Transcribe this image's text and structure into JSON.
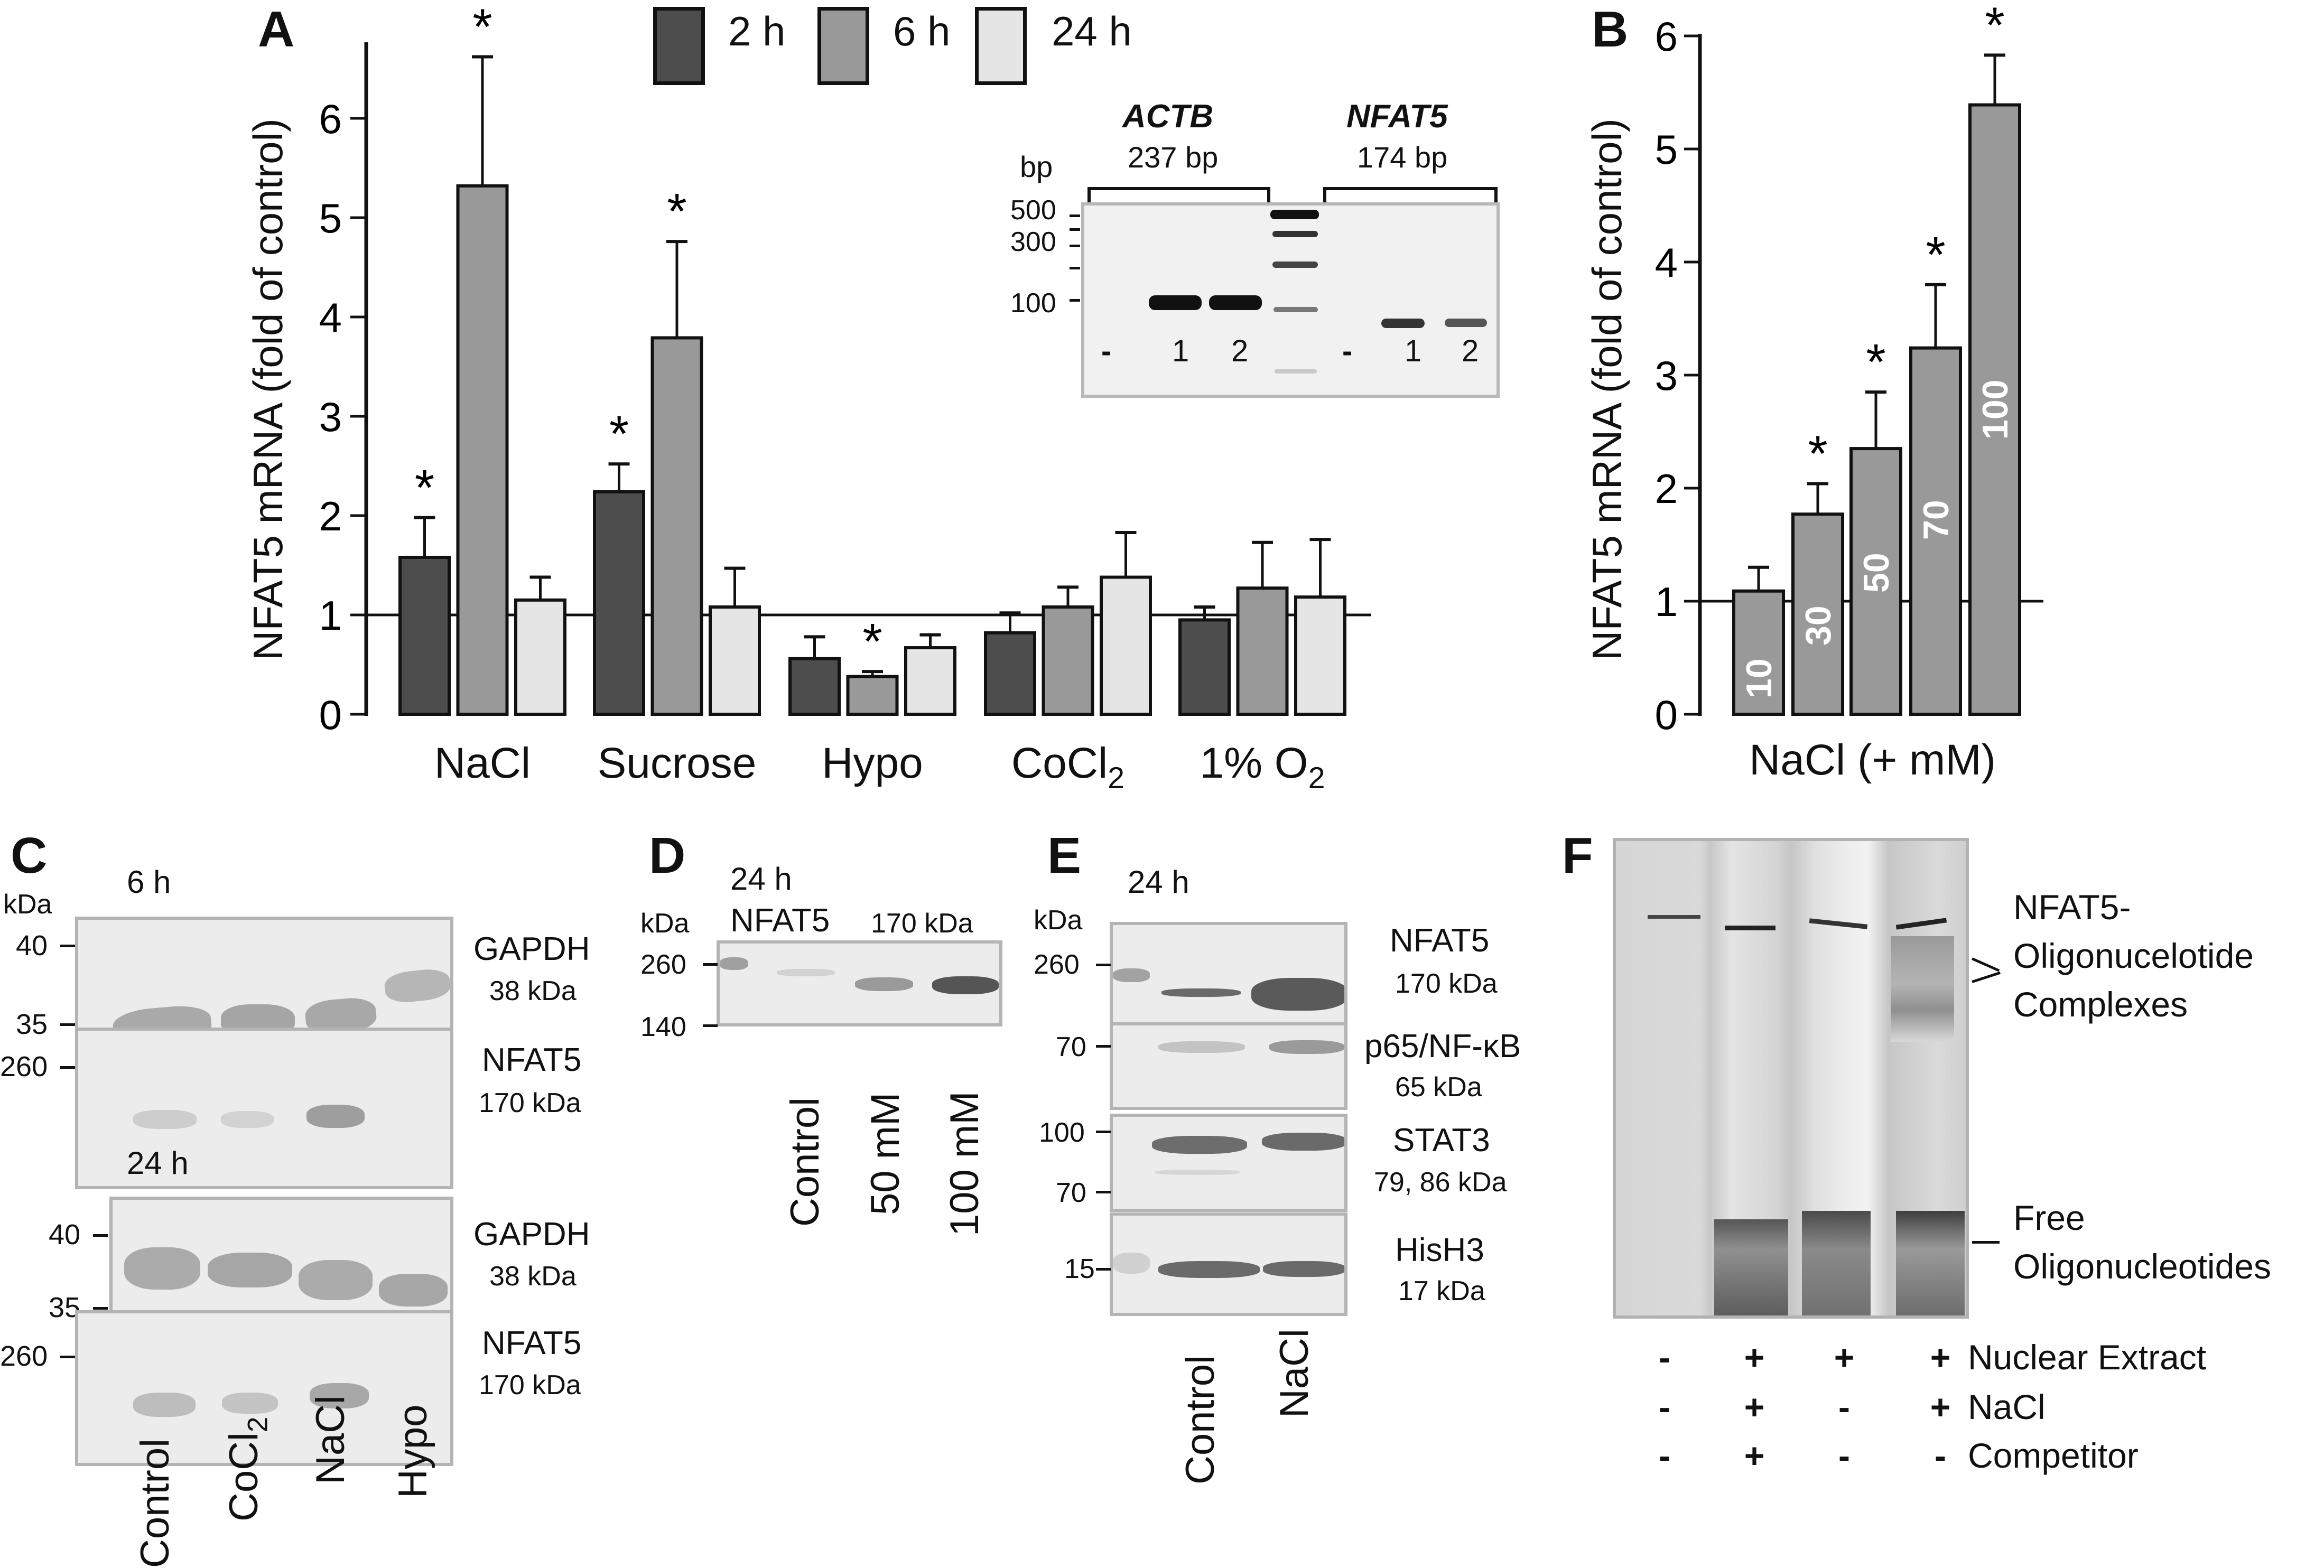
{
  "panels": {
    "A": "A",
    "B": "B",
    "C": "C",
    "D": "D",
    "E": "E",
    "F": "F"
  },
  "colors": {
    "h2": "#4d4d4d",
    "h6": "#999999",
    "h24": "#e5e5e5"
  },
  "chart_data": [
    {
      "id": "A",
      "type": "bar",
      "title": "",
      "ylabel": "NFAT5 mRNA (fold of control)",
      "xlabel": "",
      "ylim": [
        0,
        6.7
      ],
      "yticks": [
        0,
        1,
        2,
        3,
        4,
        5,
        6
      ],
      "reference_line": 1,
      "categories": [
        "NaCl",
        "Sucrose",
        "Hypo",
        "CoCl2",
        "1% O2"
      ],
      "category_labels": [
        {
          "main": "NaCl",
          "sub": ""
        },
        {
          "main": "Sucrose",
          "sub": ""
        },
        {
          "main": "Hypo",
          "sub": ""
        },
        {
          "main": "CoCl",
          "sub": "2"
        },
        {
          "main": "1% O",
          "sub": "2"
        }
      ],
      "legend": [
        "2 h",
        "6 h",
        "24 h"
      ],
      "legend_position": "top",
      "series": [
        {
          "name": "2 h",
          "values": [
            1.58,
            2.24,
            0.56,
            0.82,
            0.95
          ],
          "error_upper": [
            1.98,
            2.52,
            0.78,
            1.02,
            1.08
          ],
          "significant": [
            true,
            true,
            false,
            false,
            false
          ]
        },
        {
          "name": "6 h",
          "values": [
            5.32,
            3.79,
            0.38,
            1.08,
            1.27
          ],
          "error_upper": [
            6.62,
            4.76,
            0.43,
            1.28,
            1.73
          ],
          "significant": [
            true,
            true,
            true,
            false,
            false
          ]
        },
        {
          "name": "24 h",
          "values": [
            1.15,
            1.08,
            0.67,
            1.38,
            1.18
          ],
          "error_upper": [
            1.38,
            1.47,
            0.8,
            1.83,
            1.76
          ],
          "significant": [
            false,
            false,
            false,
            false,
            false
          ]
        }
      ],
      "significance_marker": "*",
      "inset": {
        "bp_label": "bp",
        "ladder_ticks": [
          "500",
          "300",
          "100"
        ],
        "genes": [
          {
            "name": "ACTB",
            "size": "237 bp",
            "lanes": [
              "-",
              "1",
              "2"
            ]
          },
          {
            "name": "NFAT5",
            "size": "174 bp",
            "lanes": [
              "-",
              "1",
              "2"
            ]
          }
        ]
      }
    },
    {
      "id": "B",
      "type": "bar",
      "title": "",
      "ylabel": "NFAT5 mRNA (fold of control)",
      "xlabel": "NaCl (+ mM)",
      "ylim": [
        0,
        6
      ],
      "yticks": [
        0,
        1,
        2,
        3,
        4,
        5,
        6
      ],
      "reference_line": 1,
      "categories": [
        "10",
        "30",
        "50",
        "70",
        "100"
      ],
      "series": [
        {
          "name": "NaCl",
          "values": [
            1.09,
            1.77,
            2.35,
            3.24,
            5.39
          ],
          "error_upper": [
            1.3,
            2.04,
            2.85,
            3.8,
            5.83
          ],
          "significant": [
            false,
            true,
            true,
            true,
            true
          ]
        }
      ],
      "significance_marker": "*"
    }
  ],
  "panelC": {
    "kda": "kDa",
    "blocks": [
      {
        "time": "6 h",
        "blots": [
          {
            "protein": "GAPDH",
            "size": "38 kDa",
            "markers": [
              "40",
              "35"
            ]
          },
          {
            "protein": "NFAT5",
            "size": "170 kDa",
            "markers": [
              "260"
            ]
          }
        ]
      },
      {
        "time": "24 h",
        "blots": [
          {
            "protein": "GAPDH",
            "size": "38 kDa",
            "markers": [
              "40",
              "35"
            ]
          },
          {
            "protein": "NFAT5",
            "size": "170 kDa",
            "markers": [
              "260"
            ]
          }
        ]
      }
    ],
    "lanes": [
      {
        "main": "Control",
        "sub": ""
      },
      {
        "main": "CoCl",
        "sub": "2"
      },
      {
        "main": "NaCl",
        "sub": ""
      },
      {
        "main": "Hypo",
        "sub": ""
      }
    ]
  },
  "panelD": {
    "time": "24 h",
    "kda": "kDa",
    "protein": "NFAT5",
    "size": "170 kDa",
    "markers": [
      "260",
      "140"
    ],
    "lanes": [
      "Control",
      "50 mM",
      "100 mM"
    ]
  },
  "panelE": {
    "time": "24 h",
    "kda": "kDa",
    "blots": [
      {
        "protein": "NFAT5",
        "size": "170 kDa",
        "markers": [
          "260"
        ]
      },
      {
        "protein": "p65/NF-κB",
        "size": "65 kDa",
        "markers": [
          "70"
        ]
      },
      {
        "protein": "STAT3",
        "size": "79, 86 kDa",
        "markers": [
          "100",
          "70"
        ]
      },
      {
        "protein": "HisH3",
        "size": "17 kDa",
        "markers": [
          "15"
        ]
      }
    ],
    "lanes": [
      "Control",
      "NaCl"
    ]
  },
  "panelF": {
    "complex_label": [
      "NFAT5-",
      "Oligonucelotide",
      "Complexes"
    ],
    "free_label": [
      "Free",
      "Oligonucleotides"
    ],
    "conditions": [
      {
        "name": "Nuclear Extract",
        "values": [
          "-",
          "+",
          "+",
          "+"
        ]
      },
      {
        "name": "NaCl",
        "values": [
          "-",
          "+",
          "-",
          "+"
        ]
      },
      {
        "name": "Competitor",
        "values": [
          "-",
          "+",
          "-",
          "-"
        ]
      }
    ]
  }
}
